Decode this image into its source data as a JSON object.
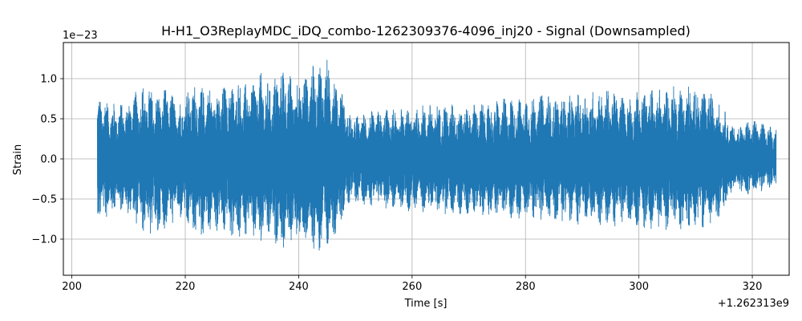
{
  "chart_data": {
    "type": "line",
    "title": "H-H1_O3ReplayMDC_iDQ_combo-1262309376-4096_inj20 - Signal (Downsampled)",
    "xlabel": "Time [s]",
    "ylabel": "Strain",
    "x_offset_label": "+1.262313e9",
    "y_scale_label": "1e−23",
    "xlim": [
      198.5,
      326.5
    ],
    "ylim": [
      -1.45,
      1.45
    ],
    "x_ticks": [
      200,
      220,
      240,
      260,
      280,
      300,
      320
    ],
    "x_tick_labels": [
      "200",
      "220",
      "240",
      "260",
      "280",
      "300",
      "320"
    ],
    "y_ticks": [
      -1.0,
      -0.5,
      0.0,
      0.5,
      1.0
    ],
    "y_tick_labels": [
      "−1.0",
      "−0.5",
      "0.0",
      "0.5",
      "1.0"
    ],
    "grid": true,
    "color": "#1f77b4",
    "series": [
      {
        "x": [
          204.5,
          205,
          207,
          209,
          211,
          213,
          215,
          217,
          219,
          221,
          223,
          225,
          227,
          229,
          231,
          233,
          235,
          237,
          239,
          241,
          243,
          245,
          246.5,
          248,
          248.5,
          250,
          253,
          256,
          259,
          262,
          265,
          268,
          271,
          274,
          277,
          280,
          283,
          286,
          289,
          292,
          295,
          298,
          301,
          304,
          307,
          310,
          313,
          316,
          316.5,
          318,
          320,
          322,
          324.2
        ],
        "y_max": [
          0.7,
          0.82,
          0.7,
          0.7,
          0.82,
          0.95,
          0.83,
          0.9,
          0.72,
          0.95,
          0.9,
          0.9,
          0.93,
          1.0,
          0.95,
          1.1,
          0.95,
          1.2,
          1.0,
          1.1,
          1.2,
          1.25,
          1.05,
          0.85,
          0.6,
          0.55,
          0.6,
          0.63,
          0.63,
          0.68,
          0.7,
          0.7,
          0.7,
          0.72,
          0.77,
          0.78,
          0.83,
          0.78,
          0.82,
          0.85,
          0.88,
          0.78,
          0.88,
          0.88,
          0.92,
          0.92,
          0.85,
          0.5,
          0.4,
          0.45,
          0.5,
          0.45,
          0.4
        ],
        "y_min": [
          -0.7,
          -0.8,
          -0.7,
          -0.65,
          -0.8,
          -0.95,
          -1.0,
          -0.85,
          -0.75,
          -0.95,
          -1.0,
          -0.9,
          -0.95,
          -1.05,
          -0.95,
          -1.1,
          -1.0,
          -1.15,
          -1.05,
          -1.12,
          -1.2,
          -1.18,
          -0.95,
          -0.7,
          -0.6,
          -0.55,
          -0.6,
          -0.63,
          -0.65,
          -0.67,
          -0.68,
          -0.7,
          -0.72,
          -0.72,
          -0.75,
          -0.77,
          -0.78,
          -0.8,
          -0.82,
          -0.83,
          -0.85,
          -0.82,
          -0.88,
          -0.88,
          -0.9,
          -0.88,
          -0.85,
          -0.55,
          -0.4,
          -0.45,
          -0.45,
          -0.4,
          -0.35
        ]
      }
    ]
  }
}
